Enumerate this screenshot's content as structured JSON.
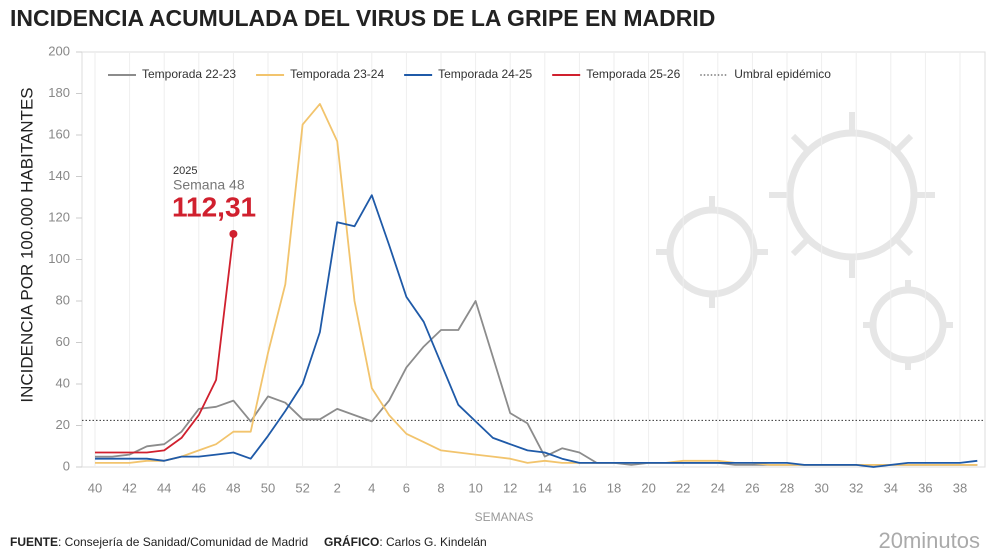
{
  "chart_data": {
    "type": "line",
    "title": "INCIDENCIA ACUMULADA DEL VIRUS DE LA GRIPE EN MADRID",
    "y_label": "INCIDENCIA POR 100.000 HABITANTES",
    "x_label": "SEMANAS",
    "categories": [
      40,
      null,
      42,
      null,
      44,
      null,
      46,
      null,
      48,
      null,
      50,
      null,
      52,
      null,
      2,
      null,
      4,
      null,
      6,
      null,
      8,
      null,
      10,
      null,
      12,
      null,
      14,
      null,
      16,
      null,
      18,
      null,
      20,
      null,
      22,
      null,
      24,
      null,
      26,
      null,
      28,
      null,
      30,
      null,
      32,
      null,
      34,
      null,
      36,
      null,
      38,
      null
    ],
    "series": [
      {
        "name": "Temporada 22-23",
        "color": "#8c8c8c",
        "values": [
          5,
          5,
          6,
          10,
          11,
          17,
          28,
          29,
          32,
          22,
          34,
          31,
          23,
          23,
          28,
          25,
          22,
          32,
          48,
          58,
          66,
          66,
          80,
          53,
          26,
          21,
          5,
          9,
          7,
          2,
          2,
          1,
          2,
          2,
          2,
          2,
          2,
          1,
          1,
          1,
          1,
          1,
          1,
          1,
          1,
          1,
          1,
          1,
          1,
          1,
          1,
          1
        ]
      },
      {
        "name": "Temporada 23-24",
        "color": "#f2c46d",
        "values": [
          2,
          2,
          2,
          3,
          3,
          5,
          8,
          11,
          17,
          17,
          55,
          88,
          165,
          175,
          157,
          80,
          38,
          25,
          16,
          12,
          8,
          7,
          6,
          5,
          4,
          2,
          3,
          2,
          2,
          2,
          2,
          2,
          2,
          2,
          3,
          3,
          3,
          2,
          2,
          1,
          1,
          1,
          1,
          1,
          1,
          1,
          1,
          1,
          1,
          1,
          1,
          1
        ]
      },
      {
        "name": "Temporada 24-25",
        "color": "#1f5aa8",
        "values": [
          4,
          4,
          4,
          4,
          3,
          5,
          5,
          6,
          7,
          4,
          15,
          27,
          40,
          65,
          118,
          116,
          131,
          107,
          82,
          70,
          50,
          30,
          22,
          14,
          11,
          8,
          7,
          4,
          2,
          2,
          2,
          2,
          2,
          2,
          2,
          2,
          2,
          2,
          2,
          2,
          2,
          1,
          1,
          1,
          1,
          0,
          1,
          2,
          2,
          2,
          2,
          3
        ]
      },
      {
        "name": "Temporada 25-26",
        "color": "#d0202e",
        "values": [
          7,
          7,
          7,
          7,
          8,
          14,
          25,
          42,
          112.31,
          null,
          null,
          null,
          null,
          null,
          null,
          null,
          null,
          null,
          null,
          null,
          null,
          null,
          null,
          null,
          null,
          null,
          null,
          null,
          null,
          null,
          null,
          null,
          null,
          null,
          null,
          null,
          null,
          null,
          null,
          null,
          null,
          null,
          null,
          null,
          null,
          null,
          null,
          null,
          null,
          null,
          null,
          null
        ],
        "value_labels": [
          null,
          null,
          null,
          null,
          null,
          null,
          null,
          null,
          "112,31",
          null,
          null,
          null,
          null,
          null,
          null,
          null,
          null,
          null,
          null,
          null,
          null,
          null,
          null,
          null,
          null,
          null,
          null,
          null,
          null,
          null,
          null,
          null,
          null,
          null,
          null,
          null,
          null,
          null,
          null,
          null,
          null,
          null,
          null,
          null,
          null,
          null,
          null,
          null,
          null,
          null,
          null,
          null
        ]
      }
    ],
    "threshold": {
      "name": "Umbral epidémico",
      "value": 22.5,
      "color": "#333333"
    },
    "annotation": {
      "year": "2025",
      "week": "Semana 48"
    },
    "ylim": [
      0,
      200
    ],
    "yticks": [
      0,
      20,
      40,
      60,
      80,
      100,
      120,
      140,
      160,
      180,
      200
    ],
    "xgrid": true,
    "legend": "top"
  },
  "footer": {
    "source_label": "FUENTE",
    "source": ": Consejería de Sanidad/Comunidad de Madrid",
    "credit_label": "GRÁFICO",
    "credit": ": Carlos G. Kindelán",
    "brand": "20minutos"
  }
}
